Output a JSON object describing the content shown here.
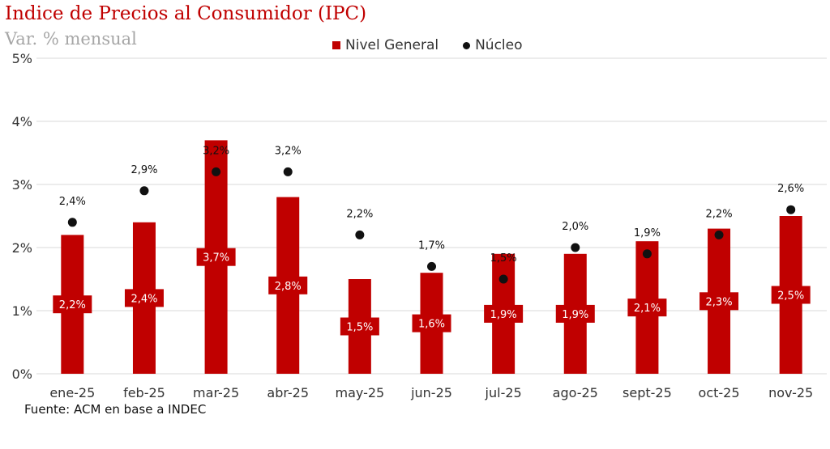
{
  "chart_data": {
    "type": "bar",
    "title": "Indice de Precios al Consumidor (IPC)",
    "subtitle": "Var. % mensual",
    "categories": [
      "ene-25",
      "feb-25",
      "mar-25",
      "abr-25",
      "may-25",
      "jun-25",
      "jul-25",
      "ago-25",
      "sept-25",
      "oct-25",
      "nov-25"
    ],
    "series": [
      {
        "name": "Nivel General",
        "type": "bar",
        "color": "#c00000",
        "values": [
          2.2,
          2.4,
          3.7,
          2.8,
          1.5,
          1.6,
          1.9,
          1.9,
          2.1,
          2.3,
          2.5
        ],
        "labels": [
          "2,2%",
          "2,4%",
          "3,7%",
          "2,8%",
          "1,5%",
          "1,6%",
          "1,9%",
          "1,9%",
          "2,1%",
          "2,3%",
          "2,5%"
        ]
      },
      {
        "name": "Núcleo",
        "type": "scatter",
        "color": "#111111",
        "values": [
          2.4,
          2.9,
          3.2,
          3.2,
          2.2,
          1.7,
          1.5,
          2.0,
          1.9,
          2.2,
          2.6
        ],
        "labels": [
          "2,4%",
          "2,9%",
          "3,2%",
          "3,2%",
          "2,2%",
          "1,7%",
          "1,5%",
          "2,0%",
          "1,9%",
          "2,2%",
          "2,6%"
        ]
      }
    ],
    "ylim": [
      0,
      5
    ],
    "yticks": [
      "0%",
      "1%",
      "2%",
      "3%",
      "4%",
      "5%"
    ],
    "grid": true,
    "legend": "top-center",
    "source": "Fuente: ACM en base a INDEC"
  }
}
